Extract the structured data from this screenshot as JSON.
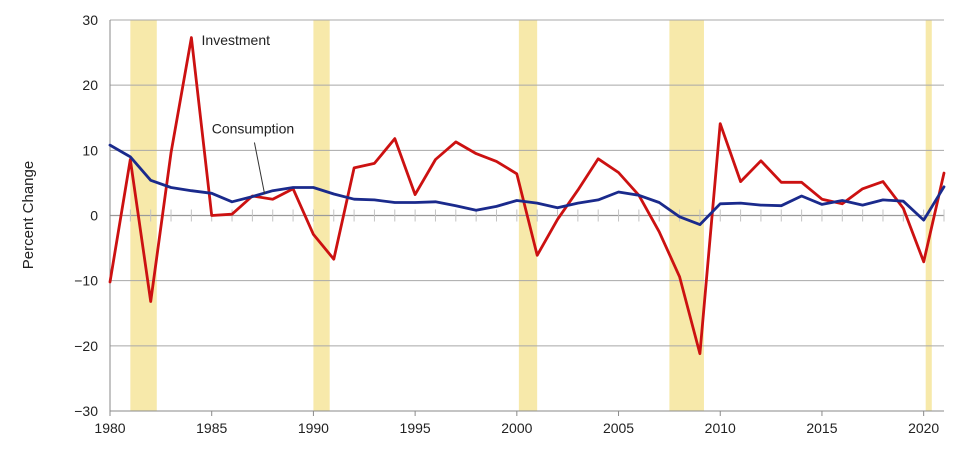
{
  "chart_data": {
    "type": "line",
    "ylabel": "Percent Change",
    "xlabel": "",
    "xlim": [
      1980,
      2021
    ],
    "ylim": [
      -30,
      30
    ],
    "y_ticks": [
      30,
      20,
      10,
      0,
      -10,
      -20,
      -30
    ],
    "x_ticks": [
      1980,
      1985,
      1990,
      1995,
      2000,
      2005,
      2010,
      2015,
      2020
    ],
    "grid": true,
    "recessions": [
      [
        1981.0,
        1982.3
      ],
      [
        1990.0,
        1990.8
      ],
      [
        2000.1,
        2001.0
      ],
      [
        2007.5,
        2009.2
      ],
      [
        2020.1,
        2020.4
      ]
    ],
    "x": [
      1980,
      1981,
      1982,
      1983,
      1984,
      1985,
      1986,
      1987,
      1988,
      1989,
      1990,
      1991,
      1992,
      1993,
      1994,
      1995,
      1996,
      1997,
      1998,
      1999,
      2000,
      2001,
      2002,
      2003,
      2004,
      2005,
      2006,
      2007,
      2008,
      2009,
      2010,
      2011,
      2012,
      2013,
      2014,
      2015,
      2016,
      2017,
      2018,
      2019,
      2020,
      2021
    ],
    "series": [
      {
        "name": "Investment",
        "color": "#cc1111",
        "values": [
          -10.2,
          8.6,
          -13.2,
          9.6,
          27.3,
          0.0,
          0.2,
          3.0,
          2.5,
          4.1,
          -2.9,
          -6.7,
          7.3,
          8.0,
          11.8,
          3.2,
          8.6,
          11.3,
          9.5,
          8.3,
          6.4,
          -6.1,
          -0.6,
          3.9,
          8.7,
          6.6,
          3.1,
          -2.5,
          -9.4,
          -21.2,
          14.1,
          5.2,
          8.4,
          5.1,
          5.1,
          2.5,
          1.8,
          4.1,
          5.2,
          1.1,
          -7.1,
          6.5
        ]
      },
      {
        "name": "Consumption",
        "color": "#1a2a8c",
        "values": [
          10.8,
          9.0,
          5.4,
          4.3,
          3.8,
          3.4,
          2.1,
          2.9,
          3.8,
          4.3,
          4.3,
          3.3,
          2.5,
          2.4,
          2.0,
          2.0,
          2.1,
          1.5,
          0.8,
          1.4,
          2.3,
          1.9,
          1.2,
          1.9,
          2.4,
          3.6,
          3.1,
          2.0,
          -0.2,
          -1.4,
          1.8,
          1.9,
          1.6,
          1.5,
          3.0,
          1.7,
          2.3,
          1.6,
          2.4,
          2.2,
          -0.7,
          4.4
        ]
      }
    ],
    "annotations": [
      {
        "text": "Investment",
        "series": "Investment"
      },
      {
        "text": "Consumption",
        "series": "Consumption"
      }
    ]
  }
}
